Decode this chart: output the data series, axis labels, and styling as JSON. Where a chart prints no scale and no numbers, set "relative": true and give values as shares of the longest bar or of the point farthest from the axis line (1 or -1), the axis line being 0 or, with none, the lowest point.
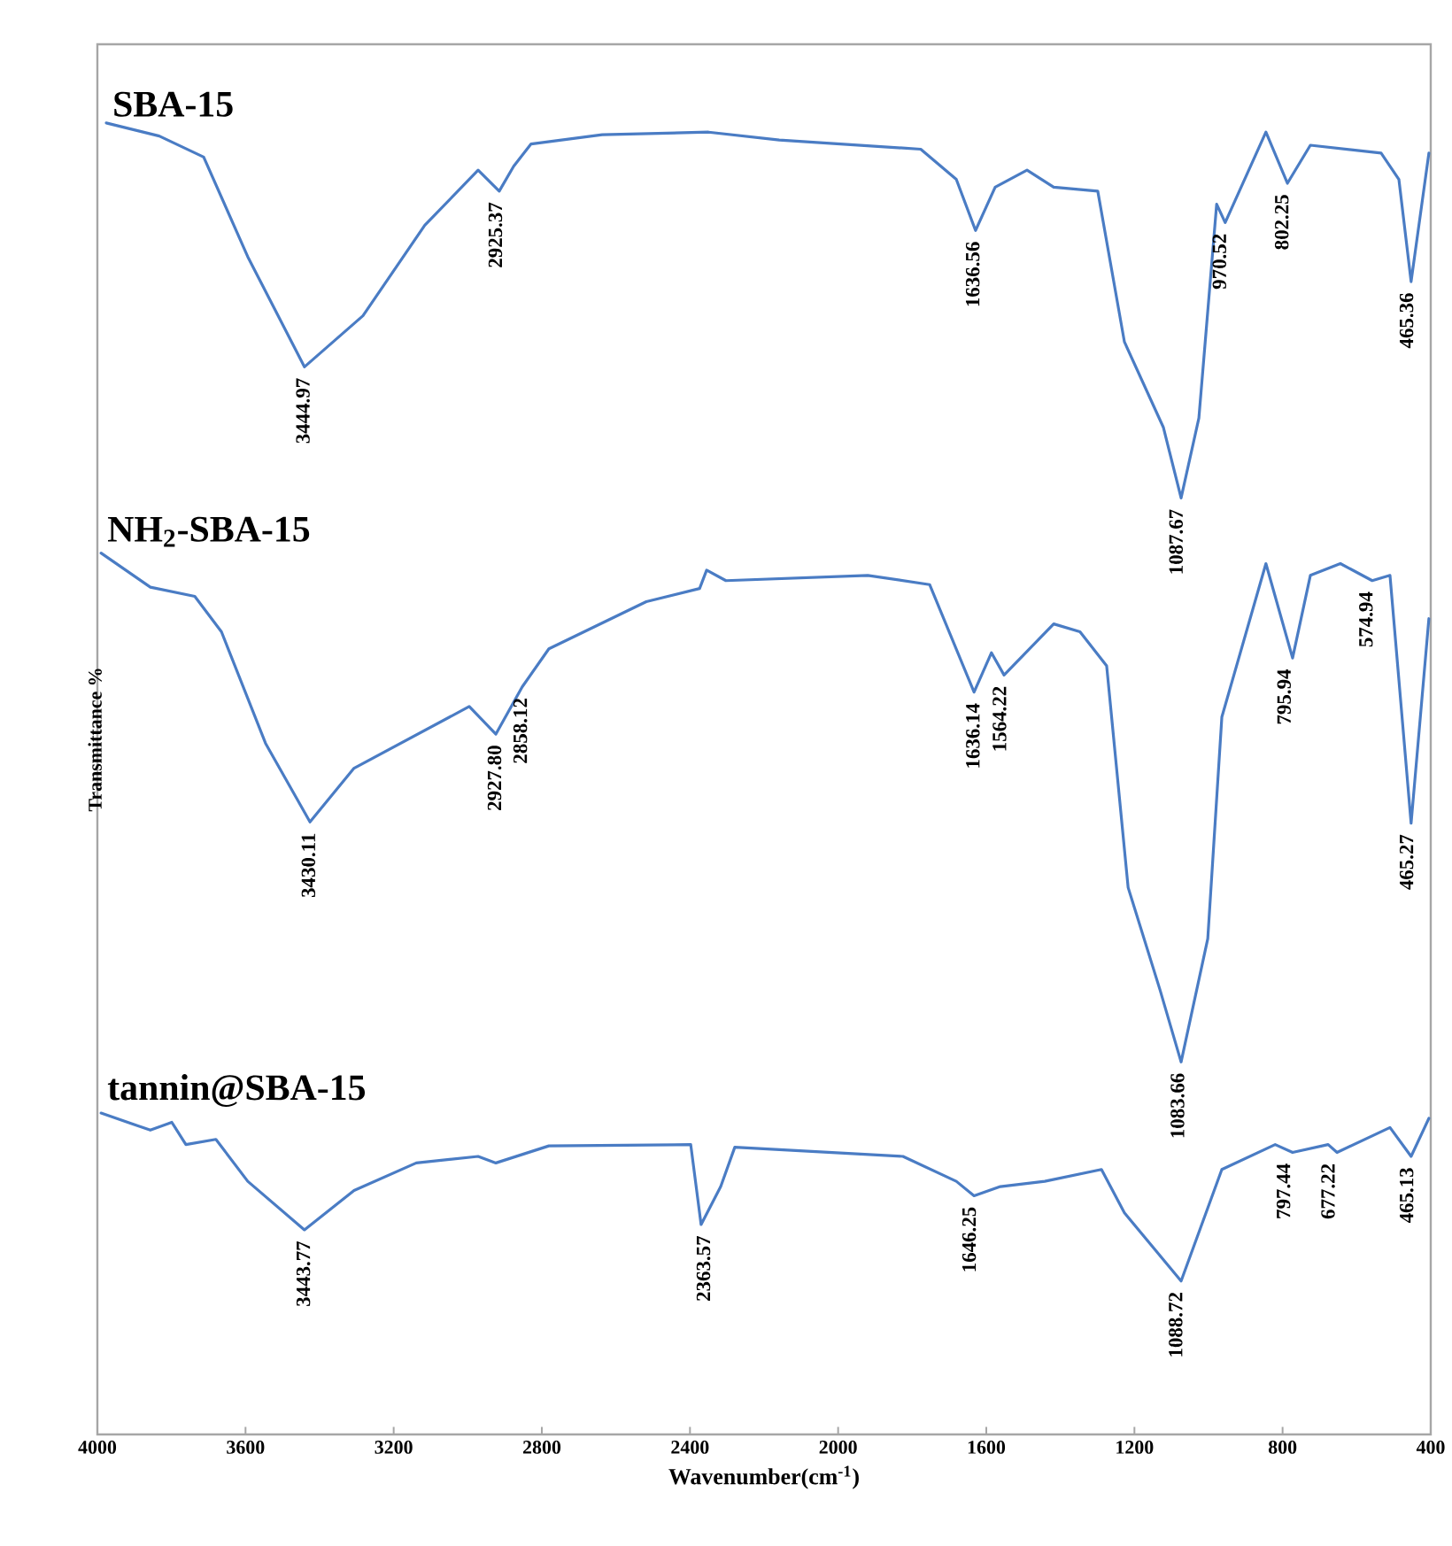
{
  "chart_data": {
    "type": "line",
    "relative": true,
    "xlabel": "Wavenumber(cm$^{-1}$)",
    "ylabel": "Transmittance %",
    "xlim": [
      4000,
      400
    ],
    "xticks": [
      4000,
      3600,
      3200,
      2800,
      2400,
      2000,
      1600,
      1200,
      800,
      400
    ],
    "tick_labels": "x",
    "legend": false,
    "grid": false,
    "marker": "none",
    "line_style": "solid",
    "series": [
      {
        "name": "SBA-15",
        "color": "#4a7cc4",
        "x": [
          3976,
          3833,
          3713,
          3594,
          3441,
          3283,
          3116,
          2972,
          2915,
          2876,
          2829,
          2637,
          2350,
          2159,
          1777,
          1681,
          1629,
          1576,
          1490,
          1418,
          1299,
          1227,
          1122,
          1074,
          1026,
          978,
          955,
          845,
          787,
          725,
          534,
          486,
          453,
          405
        ],
        "values": [
          1.0,
          0.99,
          0.974,
          0.898,
          0.814,
          0.853,
          0.922,
          0.964,
          0.948,
          0.967,
          0.984,
          0.991,
          0.993,
          0.987,
          0.98,
          0.957,
          0.918,
          0.951,
          0.964,
          0.951,
          0.948,
          0.833,
          0.768,
          0.714,
          0.775,
          0.938,
          0.924,
          0.993,
          0.954,
          0.983,
          0.977,
          0.957,
          0.879,
          0.977
        ]
      },
      {
        "name": "NH$_{2}$-SBA-15",
        "color": "#4a7cc4",
        "x": [
          3990,
          3857,
          3737,
          3665,
          3546,
          3426,
          3307,
          2996,
          2924,
          2853,
          2781,
          2518,
          2374,
          2355,
          2303,
          1920,
          1753,
          1633,
          1586,
          1552,
          1418,
          1347,
          1275,
          1217,
          1131,
          1074,
          1002,
          964,
          845,
          773,
          725,
          644,
          558,
          510,
          453,
          405
        ],
        "values": [
          0.672,
          0.646,
          0.639,
          0.612,
          0.527,
          0.467,
          0.508,
          0.555,
          0.534,
          0.57,
          0.599,
          0.635,
          0.645,
          0.659,
          0.651,
          0.655,
          0.648,
          0.566,
          0.596,
          0.579,
          0.618,
          0.612,
          0.586,
          0.417,
          0.339,
          0.284,
          0.378,
          0.547,
          0.664,
          0.592,
          0.655,
          0.664,
          0.651,
          0.655,
          0.466,
          0.622
        ]
      },
      {
        "name": "tannin@SBA-15",
        "color": "#4a7cc4",
        "x": [
          3990,
          3857,
          3799,
          3761,
          3680,
          3594,
          3441,
          3307,
          3139,
          2972,
          2924,
          2781,
          2398,
          2370,
          2317,
          2279,
          1825,
          1681,
          1633,
          1562,
          1442,
          1289,
          1227,
          1074,
          964,
          820,
          773,
          677,
          653,
          510,
          453,
          405
        ],
        "values": [
          0.245,
          0.232,
          0.238,
          0.221,
          0.225,
          0.193,
          0.156,
          0.186,
          0.207,
          0.212,
          0.207,
          0.22,
          0.221,
          0.16,
          0.189,
          0.219,
          0.212,
          0.193,
          0.182,
          0.189,
          0.193,
          0.202,
          0.169,
          0.117,
          0.202,
          0.221,
          0.215,
          0.221,
          0.215,
          0.234,
          0.212,
          0.241
        ]
      }
    ],
    "annotations": [
      {
        "text": "3444.97",
        "x": 3444.97,
        "y": 0.814
      },
      {
        "text": "2925.37",
        "x": 2925.37,
        "y": 0.948
      },
      {
        "text": "1636.56",
        "x": 1636.56,
        "y": 0.918
      },
      {
        "text": "1087.67",
        "x": 1087.67,
        "y": 0.714
      },
      {
        "text": "970.52",
        "x": 970.52,
        "y": 0.924
      },
      {
        "text": "802.25",
        "x": 802.25,
        "y": 0.954
      },
      {
        "text": "465.36",
        "x": 465.36,
        "y": 0.879
      },
      {
        "text": "3430.11",
        "x": 3430.11,
        "y": 0.467
      },
      {
        "text": "2927.80",
        "x": 2927.8,
        "y": 0.534
      },
      {
        "text": "2858.12",
        "x": 2858.12,
        "y": 0.57
      },
      {
        "text": "1636.14",
        "x": 1636.14,
        "y": 0.566
      },
      {
        "text": "1564.22",
        "x": 1564.22,
        "y": 0.579
      },
      {
        "text": "1083.66",
        "x": 1083.66,
        "y": 0.284
      },
      {
        "text": "795.94",
        "x": 795.94,
        "y": 0.592
      },
      {
        "text": "574.94",
        "x": 574.94,
        "y": 0.651
      },
      {
        "text": "465.27",
        "x": 465.27,
        "y": 0.466
      },
      {
        "text": "3443.77",
        "x": 3443.77,
        "y": 0.156
      },
      {
        "text": "2363.57",
        "x": 2363.57,
        "y": 0.16
      },
      {
        "text": "1646.25",
        "x": 1646.25,
        "y": 0.182
      },
      {
        "text": "1088.72",
        "x": 1088.72,
        "y": 0.117
      },
      {
        "text": "797.44",
        "x": 797.44,
        "y": 0.215
      },
      {
        "text": "677.22",
        "x": 677.22,
        "y": 0.215
      },
      {
        "text": "465.13",
        "x": 465.13,
        "y": 0.212
      }
    ]
  }
}
